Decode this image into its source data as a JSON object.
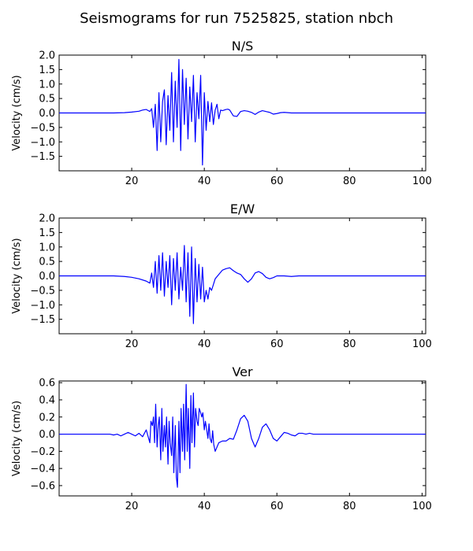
{
  "figure_title": "Seismograms for run 7525825, station nbch",
  "line_color": "#0000ff",
  "chart_data": [
    {
      "type": "line",
      "title": "N/S",
      "xlabel": "",
      "ylabel": "Velocity (cm/s)",
      "xlim": [
        0,
        101
      ],
      "ylim": [
        -2.0,
        2.0
      ],
      "xticks": [
        20,
        40,
        60,
        80,
        100
      ],
      "yticks": [
        -1.5,
        -1.0,
        -0.5,
        0.0,
        0.5,
        1.0,
        1.5,
        2.0
      ],
      "ytick_labels": [
        "−1.5",
        "−1.0",
        "−0.5",
        "0.0",
        "0.5",
        "1.0",
        "1.5",
        "2.0"
      ],
      "x": [
        0,
        15,
        18,
        20,
        22,
        23,
        24,
        25,
        25.5,
        26,
        26.5,
        27,
        27.5,
        28,
        28.5,
        29,
        29.5,
        30,
        30.5,
        31,
        31.5,
        32,
        32.5,
        33,
        33.5,
        34,
        34.5,
        35,
        35.5,
        36,
        36.5,
        37,
        37.5,
        38,
        38.5,
        39,
        39.5,
        40,
        40.5,
        41,
        41.5,
        42,
        42.5,
        43,
        43.5,
        44,
        44.5,
        45,
        45.5,
        46,
        46.5,
        47,
        48,
        49,
        50,
        51,
        52,
        53,
        54,
        55,
        56,
        57,
        58,
        59,
        60,
        61,
        62,
        63,
        64,
        65,
        66,
        67,
        68,
        70,
        75,
        80,
        90,
        101
      ],
      "series": [
        {
          "values": [
            0,
            0,
            0.01,
            0.03,
            0.06,
            0.1,
            0.12,
            0.05,
            0.15,
            -0.5,
            0.3,
            -1.3,
            0.7,
            -1.0,
            0.4,
            0.8,
            -1.1,
            0.6,
            -0.6,
            1.4,
            -1.0,
            1.1,
            -0.5,
            1.85,
            -1.3,
            1.5,
            -0.4,
            1.2,
            -0.9,
            0.9,
            -0.3,
            1.3,
            -1.0,
            0.7,
            -0.2,
            1.3,
            -1.8,
            0.7,
            -0.6,
            0.4,
            -0.3,
            0.35,
            -0.4,
            0.1,
            0.3,
            -0.2,
            0.1,
            0.08,
            0.1,
            0.12,
            0.13,
            0.1,
            -0.1,
            -0.12,
            0.05,
            0.08,
            0.06,
            0.02,
            -0.05,
            0.03,
            0.08,
            0.05,
            0.02,
            -0.04,
            -0.02,
            0.01,
            0.02,
            0.01,
            0,
            0,
            0,
            0,
            0,
            0,
            0,
            0,
            0,
            0
          ]
        }
      ]
    },
    {
      "type": "line",
      "title": "E/W",
      "xlabel": "",
      "ylabel": "Velocity (cm/s)",
      "xlim": [
        0,
        101
      ],
      "ylim": [
        -2.0,
        2.0
      ],
      "xticks": [
        20,
        40,
        60,
        80,
        100
      ],
      "yticks": [
        -1.5,
        -1.0,
        -0.5,
        0.0,
        0.5,
        1.0,
        1.5,
        2.0
      ],
      "ytick_labels": [
        "−1.5",
        "−1.0",
        "−0.5",
        "0.0",
        "0.5",
        "1.0",
        "1.5",
        "2.0"
      ],
      "x": [
        0,
        15,
        18,
        20,
        22,
        24,
        25,
        25.5,
        26,
        26.5,
        27,
        27.5,
        28,
        28.5,
        29,
        29.5,
        30,
        30.5,
        31,
        31.5,
        32,
        32.5,
        33,
        33.5,
        34,
        34.5,
        35,
        35.5,
        36,
        36.5,
        37,
        37.5,
        38,
        38.5,
        39,
        39.5,
        40,
        40.5,
        41,
        41.5,
        42,
        42.5,
        43,
        44,
        45,
        46,
        47,
        48,
        49,
        50,
        51,
        52,
        53,
        54,
        55,
        56,
        57,
        58,
        59,
        60,
        62,
        64,
        66,
        70,
        80,
        90,
        101
      ],
      "series": [
        {
          "values": [
            0,
            0,
            -0.02,
            -0.05,
            -0.1,
            -0.18,
            -0.25,
            0.1,
            -0.4,
            0.5,
            -0.6,
            0.7,
            -0.5,
            0.8,
            -0.7,
            0.5,
            -0.4,
            0.7,
            -1.0,
            0.6,
            -0.5,
            0.8,
            -0.8,
            0.3,
            -0.5,
            1.05,
            -0.9,
            0.8,
            -1.4,
            1.0,
            -1.65,
            0.6,
            -0.9,
            0.4,
            -0.8,
            0.3,
            -0.9,
            -0.5,
            -0.8,
            -0.4,
            -0.5,
            -0.3,
            -0.1,
            0.05,
            0.2,
            0.25,
            0.28,
            0.18,
            0.1,
            0.05,
            -0.1,
            -0.22,
            -0.1,
            0.1,
            0.15,
            0.08,
            -0.05,
            -0.1,
            -0.06,
            0,
            0,
            -0.02,
            0,
            0,
            0,
            0,
            0
          ]
        }
      ]
    },
    {
      "type": "line",
      "title": "Ver",
      "xlabel": "",
      "ylabel": "Velocity (cm/s)",
      "xlim": [
        0,
        101
      ],
      "ylim": [
        -0.72,
        0.62
      ],
      "xticks": [
        20,
        40,
        60,
        80,
        100
      ],
      "yticks": [
        -0.6,
        -0.4,
        -0.2,
        0.0,
        0.2,
        0.4,
        0.6
      ],
      "ytick_labels": [
        "−0.6",
        "−0.4",
        "−0.2",
        "0.0",
        "0.2",
        "0.4",
        "0.6"
      ],
      "x": [
        0,
        14,
        15,
        16,
        17,
        18,
        19,
        20,
        21,
        22,
        23,
        24,
        25,
        25.3,
        25.7,
        26,
        26.3,
        26.6,
        27,
        27.3,
        27.6,
        28,
        28.3,
        28.6,
        29,
        29.3,
        29.6,
        30,
        30.3,
        30.6,
        31,
        31.3,
        31.6,
        32,
        32.3,
        32.6,
        33,
        33.3,
        33.6,
        34,
        34.3,
        34.6,
        35,
        35.3,
        35.6,
        36,
        36.3,
        36.6,
        37,
        37.3,
        37.6,
        38,
        38.3,
        38.6,
        39,
        39.3,
        39.6,
        40,
        40.3,
        40.6,
        41,
        41.3,
        41.6,
        42,
        42.3,
        42.6,
        43,
        43.5,
        44,
        45,
        46,
        47,
        48,
        49,
        50,
        51,
        52,
        53,
        54,
        55,
        56,
        57,
        58,
        59,
        60,
        61,
        62,
        63,
        64,
        65,
        66,
        67,
        68,
        69,
        70,
        72,
        74,
        80,
        90,
        101
      ],
      "series": [
        {
          "values": [
            0,
            0,
            -0.01,
            0,
            -0.02,
            0,
            0.02,
            0,
            -0.02,
            0.01,
            -0.03,
            0.05,
            -0.1,
            0.15,
            0.1,
            0.2,
            -0.1,
            0.35,
            -0.15,
            0.1,
            0.2,
            -0.3,
            0.3,
            -0.2,
            0.1,
            -0.15,
            0.2,
            -0.35,
            0.15,
            -0.1,
            -0.25,
            0.2,
            -0.45,
            0.1,
            -0.5,
            -0.62,
            0.15,
            -0.45,
            0.3,
            -0.2,
            0.35,
            -0.3,
            0.58,
            -0.2,
            0.3,
            -0.4,
            0.45,
            -0.1,
            0.48,
            -0.15,
            0.3,
            0.15,
            0.1,
            0.3,
            0.25,
            0.2,
            0.25,
            0.05,
            0.15,
            0.07,
            -0.05,
            0.12,
            -0.05,
            -0.1,
            0.04,
            -0.12,
            -0.2,
            -0.15,
            -0.1,
            -0.08,
            -0.08,
            -0.05,
            -0.06,
            0.05,
            0.18,
            0.22,
            0.15,
            -0.05,
            -0.15,
            -0.05,
            0.08,
            0.12,
            0.05,
            -0.05,
            -0.08,
            -0.03,
            0.02,
            0.01,
            -0.01,
            -0.02,
            0.01,
            0.01,
            0,
            0.01,
            0,
            0,
            0,
            0,
            0,
            0
          ]
        }
      ]
    }
  ]
}
